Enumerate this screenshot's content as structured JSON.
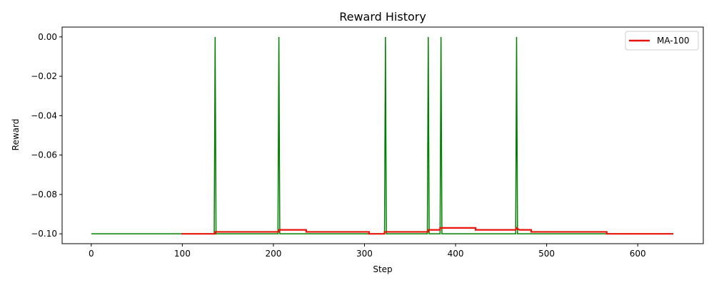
{
  "chart_data": {
    "type": "line",
    "title": "Reward History",
    "xlabel": "Step",
    "ylabel": "Reward",
    "xlim": [
      -32,
      672
    ],
    "ylim": [
      -0.105,
      0.005
    ],
    "xticks": [
      0,
      100,
      200,
      300,
      400,
      500,
      600
    ],
    "xtick_labels": [
      "0",
      "100",
      "200",
      "300",
      "400",
      "500",
      "600"
    ],
    "yticks": [
      0.0,
      -0.02,
      -0.04,
      -0.06,
      -0.08,
      -0.1
    ],
    "ytick_labels": [
      "0.00",
      "−0.02",
      "−0.04",
      "−0.06",
      "−0.08",
      "−0.10"
    ],
    "grid": false,
    "legend": {
      "placement": "top-right",
      "entries": [
        "MA-100"
      ]
    },
    "series": [
      {
        "name": "",
        "color": "#008000",
        "x": [
          0,
          135,
          136,
          137,
          205,
          206,
          207,
          322,
          323,
          324,
          369,
          370,
          371,
          383,
          384,
          385,
          466,
          467,
          468,
          639
        ],
        "values": [
          -0.1,
          -0.1,
          0.0,
          -0.1,
          -0.1,
          0.0,
          -0.1,
          -0.1,
          0.0,
          -0.1,
          -0.1,
          0.0,
          -0.1,
          -0.1,
          0.0,
          -0.1,
          -0.1,
          0.0,
          -0.1,
          -0.1
        ]
      },
      {
        "name": "MA-100",
        "color": "#e8140a",
        "x": [
          99,
          136,
          136,
          206,
          206,
          236,
          236,
          305,
          305,
          322,
          322,
          370,
          370,
          383,
          383,
          422,
          422,
          466,
          467,
          470,
          470,
          483,
          483,
          566,
          566,
          639
        ],
        "values": [
          -0.1,
          -0.1,
          -0.099,
          -0.099,
          -0.098,
          -0.098,
          -0.099,
          -0.099,
          -0.1,
          -0.1,
          -0.099,
          -0.099,
          -0.098,
          -0.098,
          -0.097,
          -0.097,
          -0.098,
          -0.098,
          -0.097,
          -0.098,
          -0.098,
          -0.098,
          -0.099,
          -0.099,
          -0.1,
          -0.1
        ]
      }
    ]
  }
}
